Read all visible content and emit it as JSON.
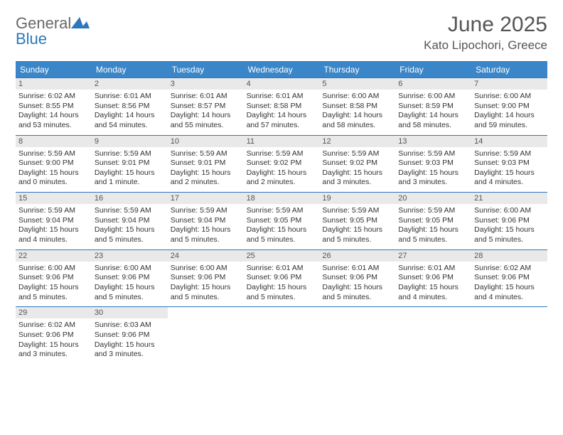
{
  "logo": {
    "general": "General",
    "blue": "Blue"
  },
  "title": "June 2025",
  "subtitle": "Kato Lipochori, Greece",
  "colors": {
    "header_bg": "#3a86c8",
    "header_text": "#ffffff",
    "rule": "#2e77bb",
    "daynum_bg": "#e9e9e9",
    "body_text": "#333333",
    "title_text": "#555555"
  },
  "day_headers": [
    "Sunday",
    "Monday",
    "Tuesday",
    "Wednesday",
    "Thursday",
    "Friday",
    "Saturday"
  ],
  "weeks": [
    [
      {
        "n": "1",
        "sr": "Sunrise: 6:02 AM",
        "ss": "Sunset: 8:55 PM",
        "d1": "Daylight: 14 hours",
        "d2": "and 53 minutes."
      },
      {
        "n": "2",
        "sr": "Sunrise: 6:01 AM",
        "ss": "Sunset: 8:56 PM",
        "d1": "Daylight: 14 hours",
        "d2": "and 54 minutes."
      },
      {
        "n": "3",
        "sr": "Sunrise: 6:01 AM",
        "ss": "Sunset: 8:57 PM",
        "d1": "Daylight: 14 hours",
        "d2": "and 55 minutes."
      },
      {
        "n": "4",
        "sr": "Sunrise: 6:01 AM",
        "ss": "Sunset: 8:58 PM",
        "d1": "Daylight: 14 hours",
        "d2": "and 57 minutes."
      },
      {
        "n": "5",
        "sr": "Sunrise: 6:00 AM",
        "ss": "Sunset: 8:58 PM",
        "d1": "Daylight: 14 hours",
        "d2": "and 58 minutes."
      },
      {
        "n": "6",
        "sr": "Sunrise: 6:00 AM",
        "ss": "Sunset: 8:59 PM",
        "d1": "Daylight: 14 hours",
        "d2": "and 58 minutes."
      },
      {
        "n": "7",
        "sr": "Sunrise: 6:00 AM",
        "ss": "Sunset: 9:00 PM",
        "d1": "Daylight: 14 hours",
        "d2": "and 59 minutes."
      }
    ],
    [
      {
        "n": "8",
        "sr": "Sunrise: 5:59 AM",
        "ss": "Sunset: 9:00 PM",
        "d1": "Daylight: 15 hours",
        "d2": "and 0 minutes."
      },
      {
        "n": "9",
        "sr": "Sunrise: 5:59 AM",
        "ss": "Sunset: 9:01 PM",
        "d1": "Daylight: 15 hours",
        "d2": "and 1 minute."
      },
      {
        "n": "10",
        "sr": "Sunrise: 5:59 AM",
        "ss": "Sunset: 9:01 PM",
        "d1": "Daylight: 15 hours",
        "d2": "and 2 minutes."
      },
      {
        "n": "11",
        "sr": "Sunrise: 5:59 AM",
        "ss": "Sunset: 9:02 PM",
        "d1": "Daylight: 15 hours",
        "d2": "and 2 minutes."
      },
      {
        "n": "12",
        "sr": "Sunrise: 5:59 AM",
        "ss": "Sunset: 9:02 PM",
        "d1": "Daylight: 15 hours",
        "d2": "and 3 minutes."
      },
      {
        "n": "13",
        "sr": "Sunrise: 5:59 AM",
        "ss": "Sunset: 9:03 PM",
        "d1": "Daylight: 15 hours",
        "d2": "and 3 minutes."
      },
      {
        "n": "14",
        "sr": "Sunrise: 5:59 AM",
        "ss": "Sunset: 9:03 PM",
        "d1": "Daylight: 15 hours",
        "d2": "and 4 minutes."
      }
    ],
    [
      {
        "n": "15",
        "sr": "Sunrise: 5:59 AM",
        "ss": "Sunset: 9:04 PM",
        "d1": "Daylight: 15 hours",
        "d2": "and 4 minutes."
      },
      {
        "n": "16",
        "sr": "Sunrise: 5:59 AM",
        "ss": "Sunset: 9:04 PM",
        "d1": "Daylight: 15 hours",
        "d2": "and 5 minutes."
      },
      {
        "n": "17",
        "sr": "Sunrise: 5:59 AM",
        "ss": "Sunset: 9:04 PM",
        "d1": "Daylight: 15 hours",
        "d2": "and 5 minutes."
      },
      {
        "n": "18",
        "sr": "Sunrise: 5:59 AM",
        "ss": "Sunset: 9:05 PM",
        "d1": "Daylight: 15 hours",
        "d2": "and 5 minutes."
      },
      {
        "n": "19",
        "sr": "Sunrise: 5:59 AM",
        "ss": "Sunset: 9:05 PM",
        "d1": "Daylight: 15 hours",
        "d2": "and 5 minutes."
      },
      {
        "n": "20",
        "sr": "Sunrise: 5:59 AM",
        "ss": "Sunset: 9:05 PM",
        "d1": "Daylight: 15 hours",
        "d2": "and 5 minutes."
      },
      {
        "n": "21",
        "sr": "Sunrise: 6:00 AM",
        "ss": "Sunset: 9:06 PM",
        "d1": "Daylight: 15 hours",
        "d2": "and 5 minutes."
      }
    ],
    [
      {
        "n": "22",
        "sr": "Sunrise: 6:00 AM",
        "ss": "Sunset: 9:06 PM",
        "d1": "Daylight: 15 hours",
        "d2": "and 5 minutes."
      },
      {
        "n": "23",
        "sr": "Sunrise: 6:00 AM",
        "ss": "Sunset: 9:06 PM",
        "d1": "Daylight: 15 hours",
        "d2": "and 5 minutes."
      },
      {
        "n": "24",
        "sr": "Sunrise: 6:00 AM",
        "ss": "Sunset: 9:06 PM",
        "d1": "Daylight: 15 hours",
        "d2": "and 5 minutes."
      },
      {
        "n": "25",
        "sr": "Sunrise: 6:01 AM",
        "ss": "Sunset: 9:06 PM",
        "d1": "Daylight: 15 hours",
        "d2": "and 5 minutes."
      },
      {
        "n": "26",
        "sr": "Sunrise: 6:01 AM",
        "ss": "Sunset: 9:06 PM",
        "d1": "Daylight: 15 hours",
        "d2": "and 5 minutes."
      },
      {
        "n": "27",
        "sr": "Sunrise: 6:01 AM",
        "ss": "Sunset: 9:06 PM",
        "d1": "Daylight: 15 hours",
        "d2": "and 4 minutes."
      },
      {
        "n": "28",
        "sr": "Sunrise: 6:02 AM",
        "ss": "Sunset: 9:06 PM",
        "d1": "Daylight: 15 hours",
        "d2": "and 4 minutes."
      }
    ],
    [
      {
        "n": "29",
        "sr": "Sunrise: 6:02 AM",
        "ss": "Sunset: 9:06 PM",
        "d1": "Daylight: 15 hours",
        "d2": "and 3 minutes."
      },
      {
        "n": "30",
        "sr": "Sunrise: 6:03 AM",
        "ss": "Sunset: 9:06 PM",
        "d1": "Daylight: 15 hours",
        "d2": "and 3 minutes."
      },
      null,
      null,
      null,
      null,
      null
    ]
  ]
}
